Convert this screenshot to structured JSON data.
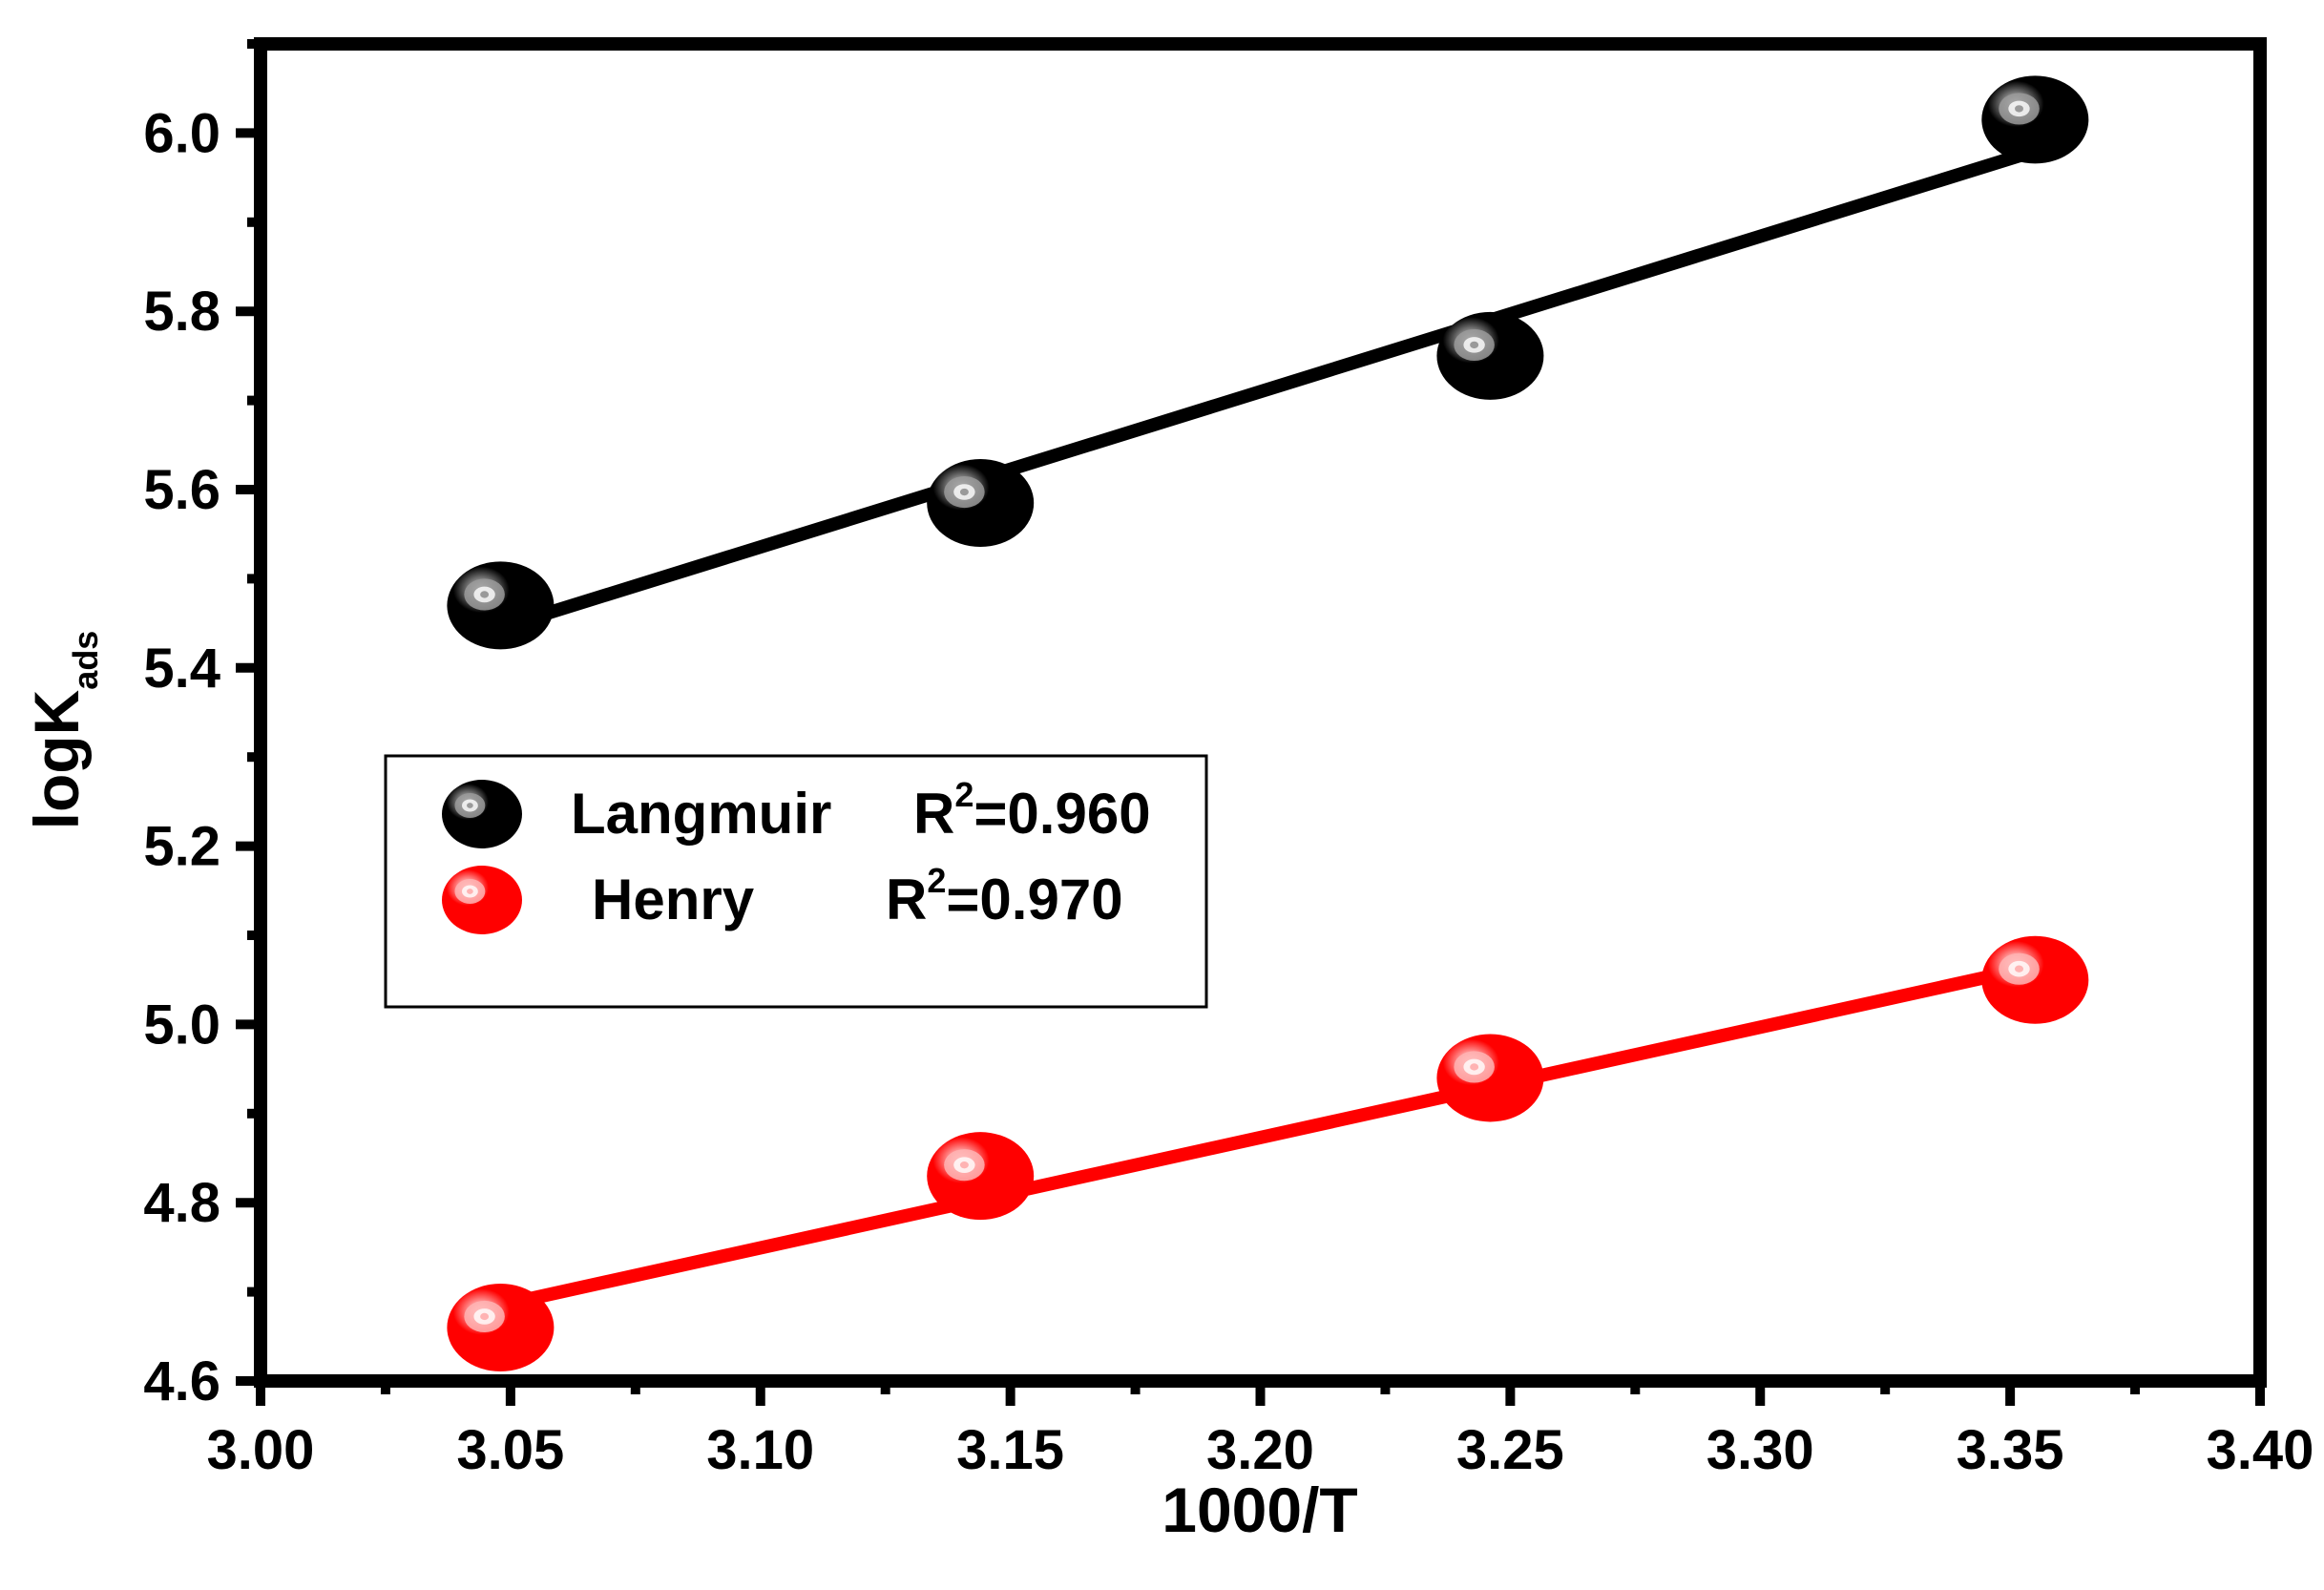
{
  "chart_data": {
    "type": "scatter",
    "xlabel": "1000/T",
    "ylabel_main": "logK",
    "ylabel_sub": "ads",
    "xlim": [
      3.0,
      3.4
    ],
    "ylim": [
      4.6,
      6.1
    ],
    "xticks": [
      "3.00",
      "3.05",
      "3.10",
      "3.15",
      "3.20",
      "3.25",
      "3.30",
      "3.35",
      "3.40"
    ],
    "yticks": [
      "4.6",
      "4.8",
      "5.0",
      "5.2",
      "5.4",
      "5.6",
      "5.8",
      "6.0"
    ],
    "legend_position": "center-left",
    "series": [
      {
        "name": "Langmuir",
        "r2_label": "R",
        "r2_sup": "2",
        "r2_value": "=0.960",
        "color": "#000000",
        "highlight": "#9a9a9a",
        "x": [
          3.048,
          3.144,
          3.246,
          3.355
        ],
        "y": [
          5.47,
          5.585,
          5.75,
          6.015
        ],
        "fit": {
          "x": [
            3.048,
            3.355
          ],
          "y": [
            5.445,
            5.98
          ]
        }
      },
      {
        "name": "Henry",
        "r2_label": "R",
        "r2_sup": "2",
        "r2_value": "=0.970",
        "color": "#ff0000",
        "highlight": "#ffb3b3",
        "x": [
          3.048,
          3.144,
          3.246,
          3.355
        ],
        "y": [
          4.66,
          4.83,
          4.94,
          5.05
        ],
        "fit": {
          "x": [
            3.048,
            3.355
          ],
          "y": [
            4.685,
            5.065
          ]
        }
      }
    ]
  }
}
